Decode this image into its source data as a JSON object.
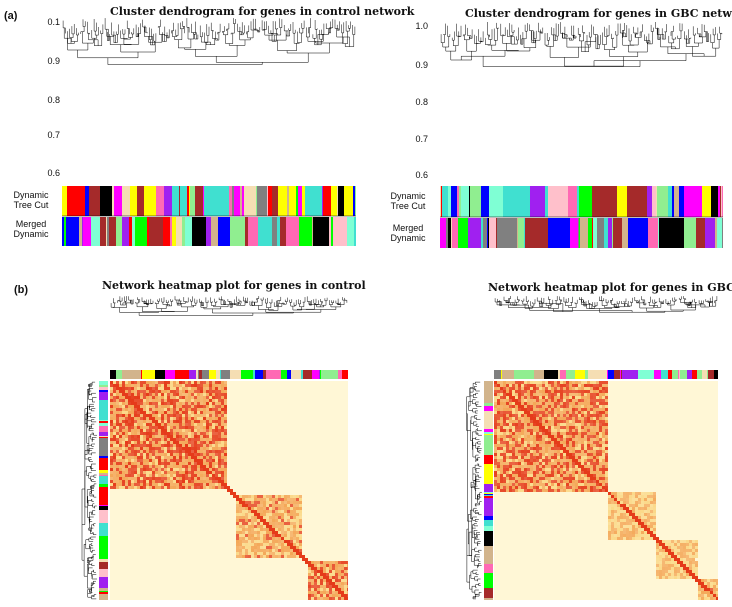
{
  "panel_a": {
    "label": "(a)",
    "left": {
      "title": "Cluster dendrogram for genes in control network",
      "y_ticks": [
        "0.1",
        "0.9",
        "0.8",
        "0.7",
        "0.6"
      ],
      "row_labels": [
        "Dynamic Tree Cut",
        "Merged Dynamic"
      ]
    },
    "right": {
      "title": "Cluster dendrogram for genes in GBC network",
      "y_ticks": [
        "1.0",
        "0.9",
        "0.8",
        "0.7",
        "0.6"
      ],
      "row_labels": [
        "Dynamic Tree Cut",
        "Merged Dynamic"
      ]
    }
  },
  "panel_b": {
    "label": "(b)",
    "left": {
      "title": "Network heatmap plot for genes in control"
    },
    "right": {
      "title": "Network heatmap plot for genes in GBC"
    }
  },
  "colors": {
    "heat_low": "#fff7d6",
    "heat_mid": "#f7c04a",
    "heat_high": "#e43312",
    "module_palette": [
      "#0000ff",
      "#40e0d0",
      "#a52a2a",
      "#ffff00",
      "#00ff00",
      "#ff0000",
      "#000000",
      "#ff69b4",
      "#a020f0",
      "#ff00ff",
      "#d2b48c",
      "#90ee90",
      "#808080",
      "#ffc0cb",
      "#7fffd4",
      "#f5deb3"
    ]
  }
}
